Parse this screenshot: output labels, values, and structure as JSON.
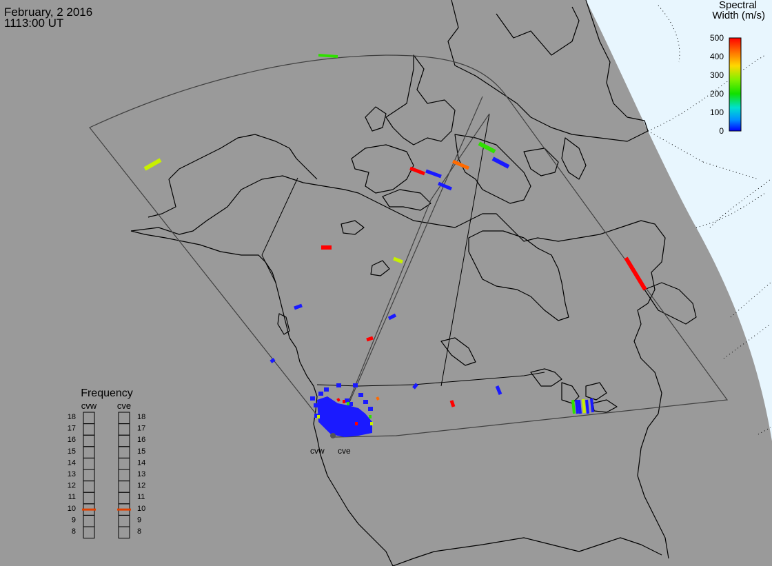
{
  "header": {
    "date": "February, 2 2016",
    "time": "1113:00 UT"
  },
  "legend": {
    "title_line1": "Spectral",
    "title_line2": "Width (m/s)",
    "ticks": [
      "500",
      "400",
      "300",
      "200",
      "100",
      "0"
    ],
    "min": 0,
    "max": 500,
    "colors": [
      "#ff0000",
      "#ff8000",
      "#ffd000",
      "#a0f000",
      "#20e000",
      "#00e0c0",
      "#00a0ff",
      "#1010ff"
    ]
  },
  "frequency_panel": {
    "title": "Frequency",
    "radars": [
      {
        "code": "cvw",
        "frequency_mhz": 10.5
      },
      {
        "code": "cve",
        "frequency_mhz": 10.5
      }
    ],
    "scale_labels": [
      "18",
      "17",
      "16",
      "15",
      "14",
      "13",
      "12",
      "11",
      "10",
      "9",
      "8"
    ],
    "marker_color": "#e04000"
  },
  "map": {
    "ocean_color": "#e8f6fe",
    "land_color": "#9a9a9a",
    "radar_labels": [
      "cvw",
      "cve"
    ]
  }
}
